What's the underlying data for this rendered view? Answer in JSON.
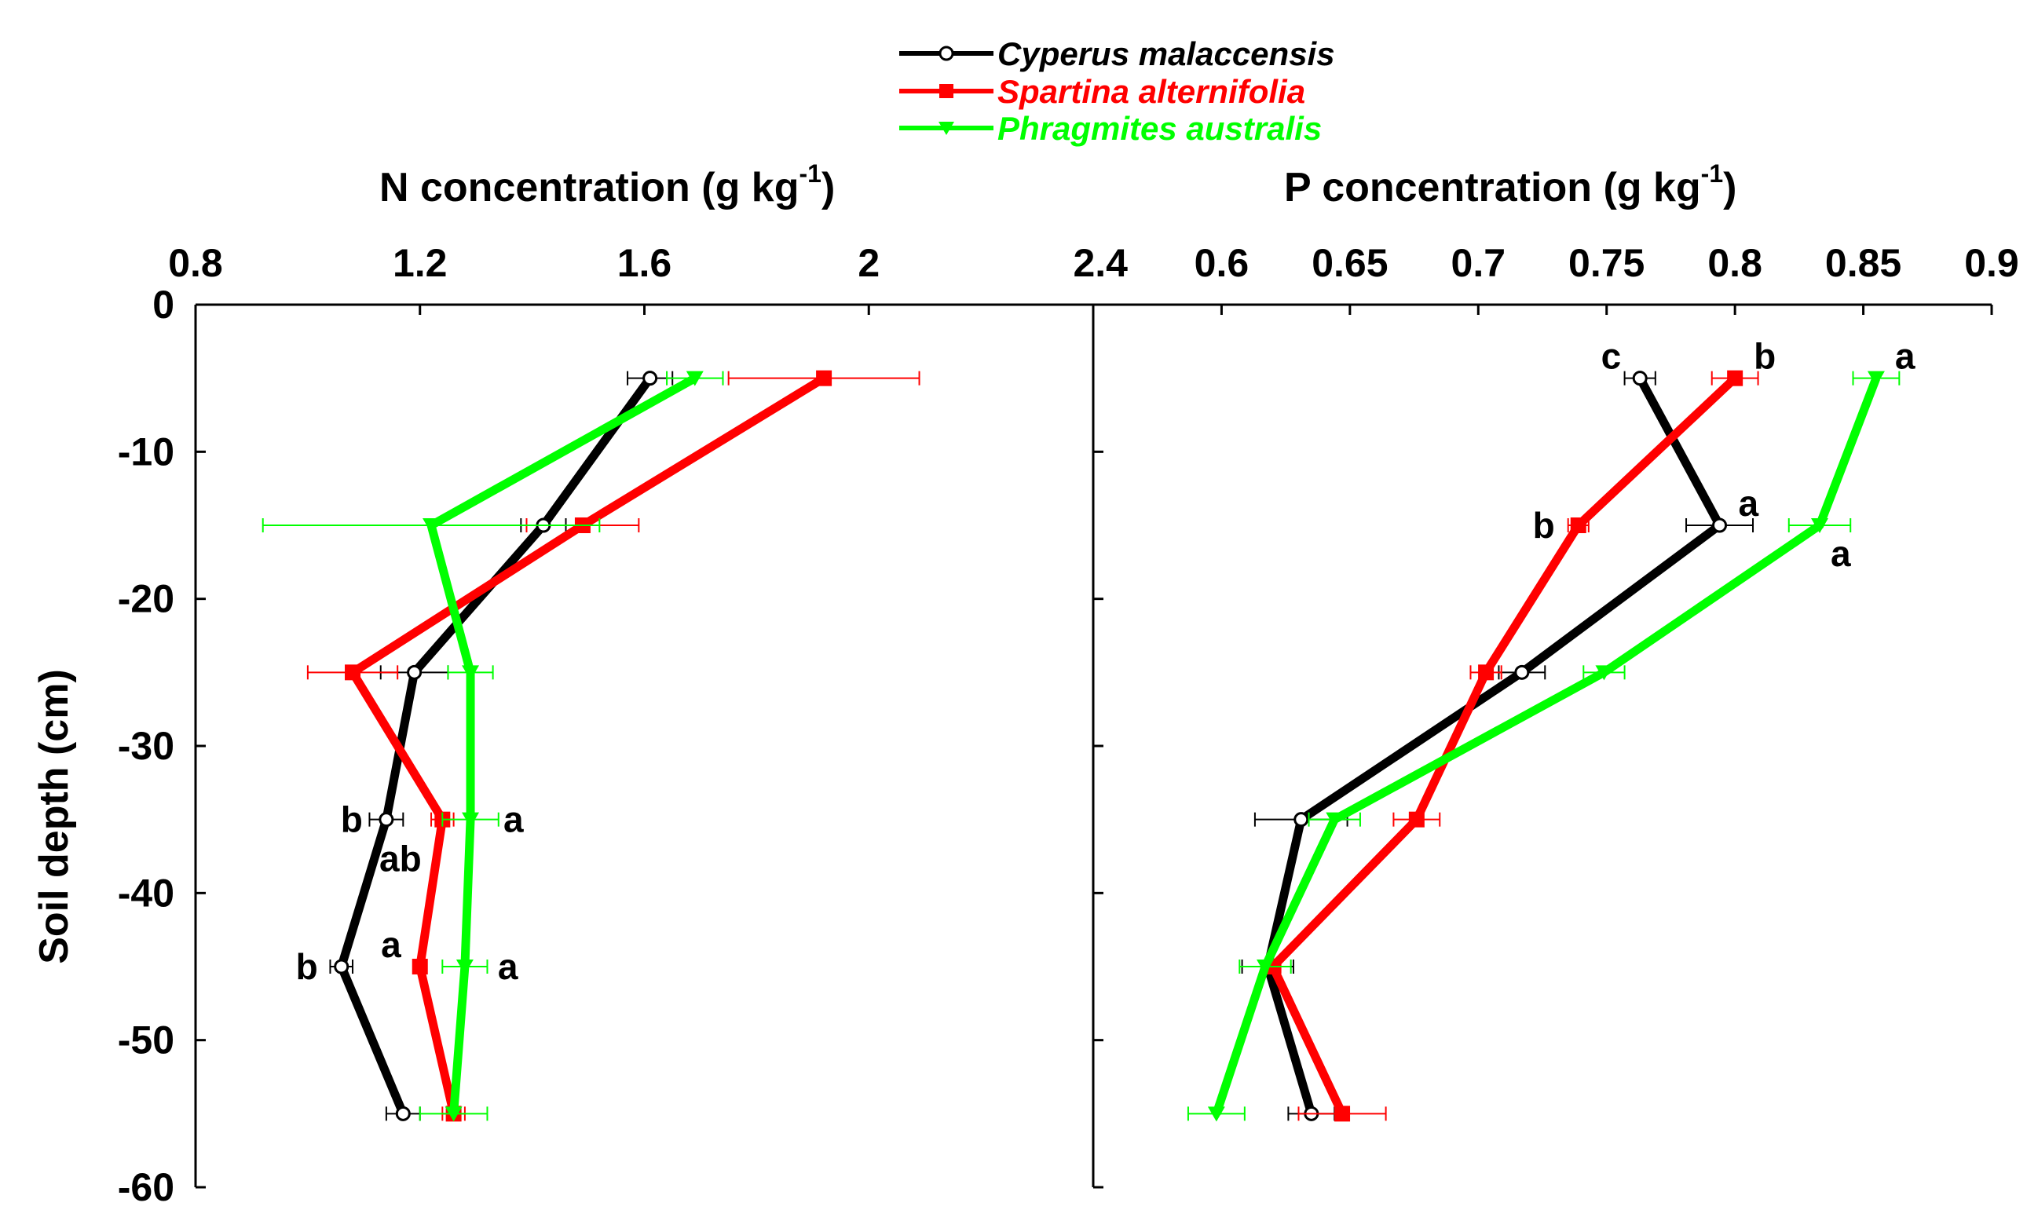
{
  "chart_data": {
    "type": "line",
    "ylabel": "Soil depth (cm)",
    "y_ticks": [
      "0",
      "-10",
      "-20",
      "-30",
      "-40",
      "-50",
      "-60"
    ],
    "ylim": [
      -60,
      0
    ],
    "depths": [
      -5,
      -15,
      -25,
      -35,
      -45,
      -55
    ],
    "legend": [
      {
        "name": "Cyperus malaccensis",
        "color": "#000000",
        "marker": "open-circle"
      },
      {
        "name": "Spartina alternifolia",
        "color": "#ff0000",
        "marker": "square"
      },
      {
        "name": "Phragmites australis",
        "color": "#00ff00",
        "marker": "triangle-down"
      }
    ],
    "panels": [
      {
        "id": "N",
        "title_main": "N  concentration (g kg",
        "title_sup": "-1",
        "title_close": ")",
        "xlim": [
          0.8,
          2.4
        ],
        "x_ticks": [
          "0.8",
          "1.2",
          "1.6",
          "2",
          "2.4"
        ],
        "series": [
          {
            "name": "Cyperus malaccensis",
            "values": [
              1.61,
              1.42,
              1.19,
              1.14,
              1.06,
              1.17
            ],
            "errors": [
              0.04,
              0.04,
              0.06,
              0.03,
              0.02,
              0.03
            ]
          },
          {
            "name": "Spartina alternifolia",
            "values": [
              1.92,
              1.49,
              1.08,
              1.24,
              1.2,
              1.26
            ],
            "errors": [
              0.17,
              0.1,
              0.08,
              0.02,
              0.01,
              0.02
            ]
          },
          {
            "name": "Phragmites australis",
            "values": [
              1.69,
              1.22,
              1.29,
              1.29,
              1.28,
              1.26
            ],
            "errors": [
              0.05,
              0.3,
              0.04,
              0.05,
              0.04,
              0.06
            ]
          }
        ],
        "annotations": [
          {
            "text": "b",
            "series": 0,
            "point": 3,
            "side": "left"
          },
          {
            "text": "a",
            "series": 2,
            "point": 3,
            "side": "right"
          },
          {
            "text": "ab",
            "series": 0,
            "point": 3,
            "side": "below"
          },
          {
            "text": "b",
            "series": 0,
            "point": 4,
            "side": "left"
          },
          {
            "text": "a",
            "series": 1,
            "point": 4,
            "side": "above-left"
          },
          {
            "text": "a",
            "series": 2,
            "point": 4,
            "side": "right"
          }
        ]
      },
      {
        "id": "P",
        "title_main": "P concentration (g kg",
        "title_sup": "-1",
        "title_close": ")",
        "xlim": [
          0.55,
          0.9
        ],
        "x_ticks": [
          "0.6",
          "0.65",
          "0.7",
          "0.75",
          "0.8",
          "0.85",
          "0.9"
        ],
        "series": [
          {
            "name": "Cyperus malaccensis",
            "values": [
              0.763,
              0.794,
              0.717,
              0.631,
              0.618,
              0.635
            ],
            "errors": [
              0.006,
              0.013,
              0.009,
              0.018,
              0.01,
              0.009
            ]
          },
          {
            "name": "Spartina alternifolia",
            "values": [
              0.8,
              0.739,
              0.703,
              0.676,
              0.62,
              0.647
            ],
            "errors": [
              0.009,
              0.004,
              0.006,
              0.009,
              0.003,
              0.017
            ]
          },
          {
            "name": "Phragmites australis",
            "values": [
              0.855,
              0.833,
              0.749,
              0.644,
              0.617,
              0.598
            ],
            "errors": [
              0.009,
              0.012,
              0.008,
              0.01,
              0.01,
              0.011
            ]
          }
        ],
        "annotations": [
          {
            "text": "c",
            "series": 0,
            "point": 0,
            "side": "above-left"
          },
          {
            "text": "b",
            "series": 1,
            "point": 0,
            "side": "above-right"
          },
          {
            "text": "a",
            "series": 2,
            "point": 0,
            "side": "above-right"
          },
          {
            "text": "a",
            "series": 0,
            "point": 1,
            "side": "above-right"
          },
          {
            "text": "b",
            "series": 1,
            "point": 1,
            "side": "left"
          },
          {
            "text": "a",
            "series": 2,
            "point": 1,
            "side": "below-right"
          }
        ]
      }
    ]
  }
}
